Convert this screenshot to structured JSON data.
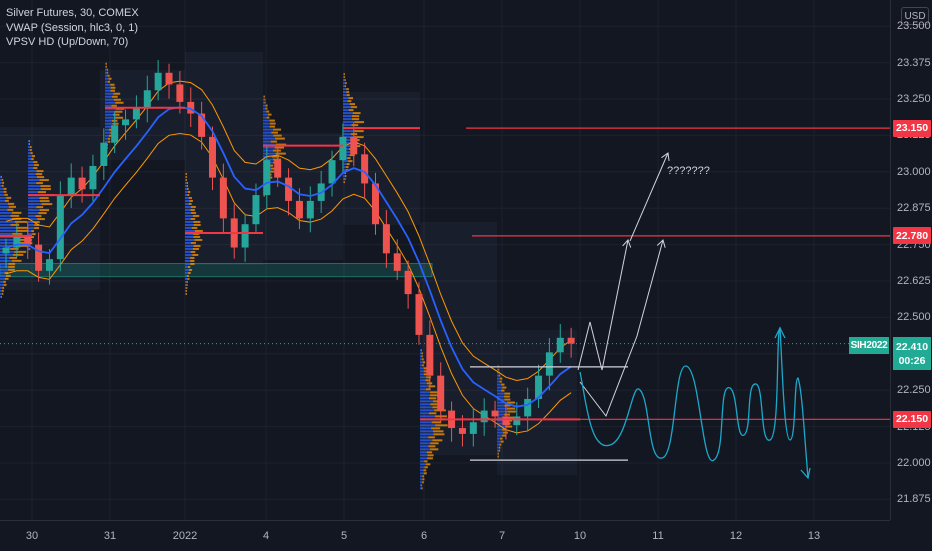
{
  "legend": {
    "title": "Silver Futures, 30, COMEX",
    "vwap": "VWAP (Session, hlc3, 0, 1)",
    "vpsv": "VPSV HD (Up/Down, 70)"
  },
  "currency": "USD",
  "symbol_tag": "SIH2022",
  "current_price": "22.410",
  "countdown": "00:26",
  "annotation_text": "???????",
  "colors": {
    "background": "#131722",
    "level_line": "#f23645",
    "up_candle": "#26a69a",
    "down_candle": "#ef5350",
    "vwap": "#2962ff",
    "band": "#ff9800",
    "zone": "#22ab94",
    "forecast": "#1ba8c9",
    "arrows": "#d1d4dc"
  },
  "chart_data": {
    "type": "candlestick",
    "title": "Silver Futures, 30, COMEX",
    "y_axis": {
      "min": 21.8,
      "max": 23.6,
      "ticks": [
        "23.500",
        "23.375",
        "23.250",
        "23.125",
        "23.000",
        "22.875",
        "22.750",
        "22.625",
        "22.500",
        "22.375",
        "22.250",
        "22.125",
        "22.000",
        "21.875"
      ]
    },
    "x_axis": {
      "ticks": [
        "30",
        "31",
        "2022",
        "4",
        "5",
        "6",
        "7",
        "10",
        "11",
        "12",
        "13"
      ]
    },
    "horizontal_levels": [
      {
        "label": "23.150",
        "value": 23.15
      },
      {
        "label": "22.780",
        "value": 22.78
      },
      {
        "label": "22.150",
        "value": 22.15
      }
    ],
    "support_zone": {
      "from": 22.64,
      "to": 22.685
    },
    "range_box": {
      "top": 22.33,
      "bottom": 22.01
    },
    "last_price": 22.41,
    "series": [
      {
        "name": "Silver Futures",
        "close": [
          22.74,
          22.78,
          22.75,
          22.66,
          22.7,
          22.92,
          22.98,
          22.94,
          23.02,
          23.1,
          23.16,
          23.18,
          23.22,
          23.28,
          23.34,
          23.3,
          23.24,
          23.2,
          23.12,
          22.98,
          22.84,
          22.74,
          22.82,
          22.92,
          23.04,
          22.98,
          22.9,
          22.84,
          22.9,
          22.96,
          23.04,
          23.12,
          23.06,
          22.96,
          22.82,
          22.72,
          22.66,
          22.58,
          22.44,
          22.3,
          22.18,
          22.12,
          22.1,
          22.14,
          22.18,
          22.16,
          22.13,
          22.16,
          22.22,
          22.3,
          22.38,
          22.43,
          22.41
        ]
      }
    ]
  }
}
